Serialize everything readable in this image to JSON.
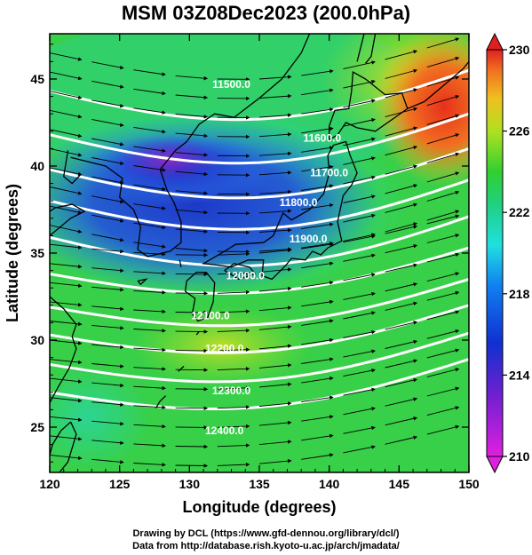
{
  "title": "MSM 03Z08Dec2023 (200.0hPa)",
  "x_axis": {
    "label": "Longitude (degrees)",
    "ticks": [
      "120",
      "125",
      "130",
      "135",
      "140",
      "145",
      "150"
    ]
  },
  "y_axis": {
    "label": "Latitude  (degrees)",
    "ticks": [
      "25",
      "30",
      "35",
      "40",
      "45"
    ]
  },
  "colorbar": {
    "ticks": [
      "210",
      "214",
      "218",
      "222",
      "226",
      "230"
    ],
    "min": 210,
    "max": 230
  },
  "contours": [
    {
      "label": "11500.0"
    },
    {
      "label": "11600.0"
    },
    {
      "label": "11700.0"
    },
    {
      "label": "11800.0"
    },
    {
      "label": "11900.0"
    },
    {
      "label": "12000.0"
    },
    {
      "label": "12100.0"
    },
    {
      "label": "12200.0"
    },
    {
      "label": "12300.0"
    },
    {
      "label": "12400.0"
    }
  ],
  "map_data": {
    "lon_range": [
      120,
      150
    ],
    "lat_range": [
      22.4,
      47.6
    ],
    "colors": {
      "min": "#d020d0",
      "low": "#1030d0",
      "mid": "#20e0e0",
      "high": "#30d040",
      "max": "#e02020"
    }
  },
  "credits": {
    "line1": "Drawing by DCL (https://www.gfd-dennou.org/library/dcl/)",
    "line2": "Data from http://database.rish.kyoto-u.ac.jp/arch/jmadata/"
  }
}
